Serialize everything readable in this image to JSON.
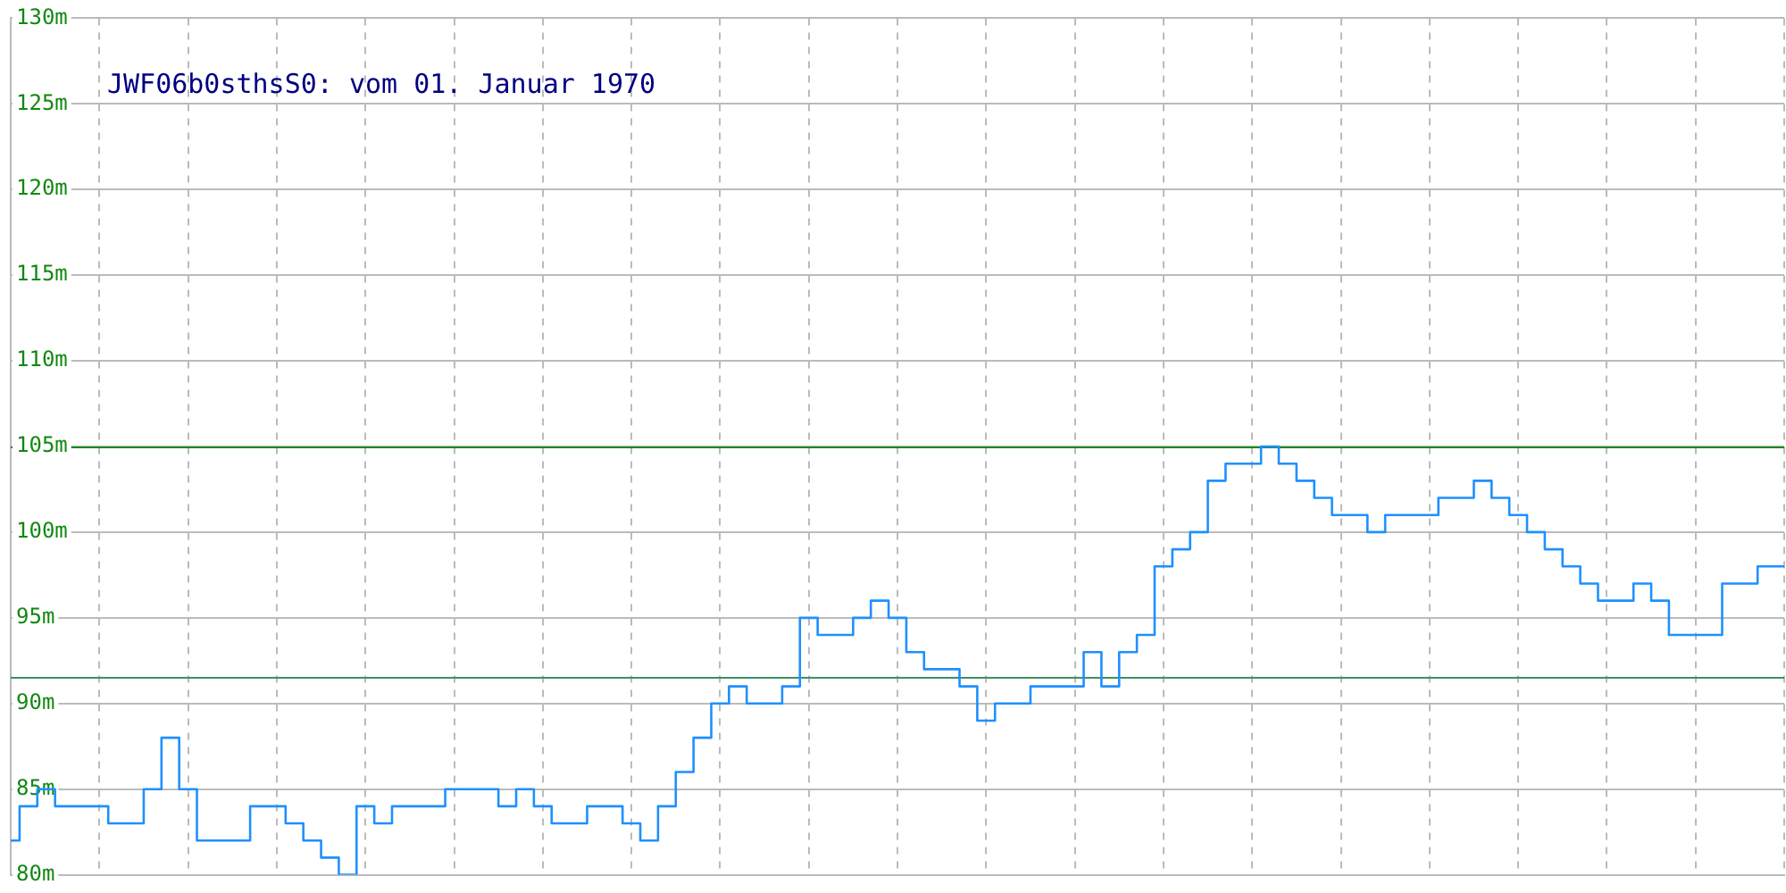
{
  "chart_data": {
    "type": "step",
    "title": "JWF06b0sthsS0: vom 01. Januar 1970",
    "categories": [
      null,
      null,
      null,
      null,
      null,
      null,
      null,
      null,
      null,
      null,
      null,
      null,
      null,
      null,
      null,
      null,
      null,
      null,
      null,
      null,
      null,
      null,
      null,
      null,
      null,
      null,
      null,
      null,
      null,
      null,
      null,
      null,
      null,
      null,
      null,
      null,
      null,
      null,
      null,
      null,
      null,
      null,
      null,
      null,
      null,
      null,
      null,
      null,
      null,
      null,
      null,
      null,
      null,
      null,
      null,
      null,
      null,
      null,
      null,
      null,
      null,
      null,
      null,
      null,
      null,
      null,
      null,
      null,
      null,
      null,
      null,
      null,
      null,
      null,
      null,
      null,
      null,
      null,
      null,
      null,
      null,
      null,
      null,
      null,
      null,
      null,
      null,
      null,
      null,
      null,
      null,
      null,
      null,
      null,
      null,
      null,
      null,
      null,
      null,
      null,
      null
    ],
    "values": [
      82,
      84,
      85,
      84,
      84,
      84,
      83,
      83,
      85,
      88,
      85,
      82,
      82,
      82,
      84,
      84,
      83,
      82,
      81,
      80,
      84,
      83,
      84,
      84,
      84,
      85,
      85,
      85,
      84,
      85,
      84,
      83,
      83,
      84,
      84,
      83,
      82,
      84,
      86,
      88,
      90,
      91,
      90,
      90,
      91,
      95,
      94,
      94,
      95,
      96,
      95,
      93,
      92,
      92,
      91,
      89,
      90,
      90,
      91,
      91,
      91,
      93,
      91,
      93,
      94,
      98,
      99,
      100,
      103,
      104,
      104,
      105,
      104,
      103,
      102,
      101,
      101,
      100,
      101,
      101,
      101,
      102,
      102,
      103,
      102,
      101,
      100,
      99,
      98,
      97,
      96,
      96,
      97,
      96,
      94,
      94,
      94,
      97,
      97,
      98,
      98
    ],
    "color": "#1e90ff",
    "ylim": [
      80,
      130
    ],
    "yticks": [
      {
        "value": 80,
        "label": "80m"
      },
      {
        "value": 85,
        "label": "85m"
      },
      {
        "value": 90,
        "label": "90m"
      },
      {
        "value": 95,
        "label": "95m"
      },
      {
        "value": 100,
        "label": "100m"
      },
      {
        "value": 105,
        "label": "105m"
      },
      {
        "value": 110,
        "label": "110m"
      },
      {
        "value": 115,
        "label": "115m"
      },
      {
        "value": 120,
        "label": "120m"
      },
      {
        "value": 125,
        "label": "125m"
      },
      {
        "value": 130,
        "label": "130m"
      }
    ],
    "grid": true,
    "tick_labels": "y",
    "marker": "none",
    "ref_lines": [
      {
        "axis": "y",
        "value": 105,
        "color": "#1a8c1a"
      },
      {
        "axis": "y",
        "value": 91.5,
        "color": "#3f8f5f"
      }
    ]
  }
}
